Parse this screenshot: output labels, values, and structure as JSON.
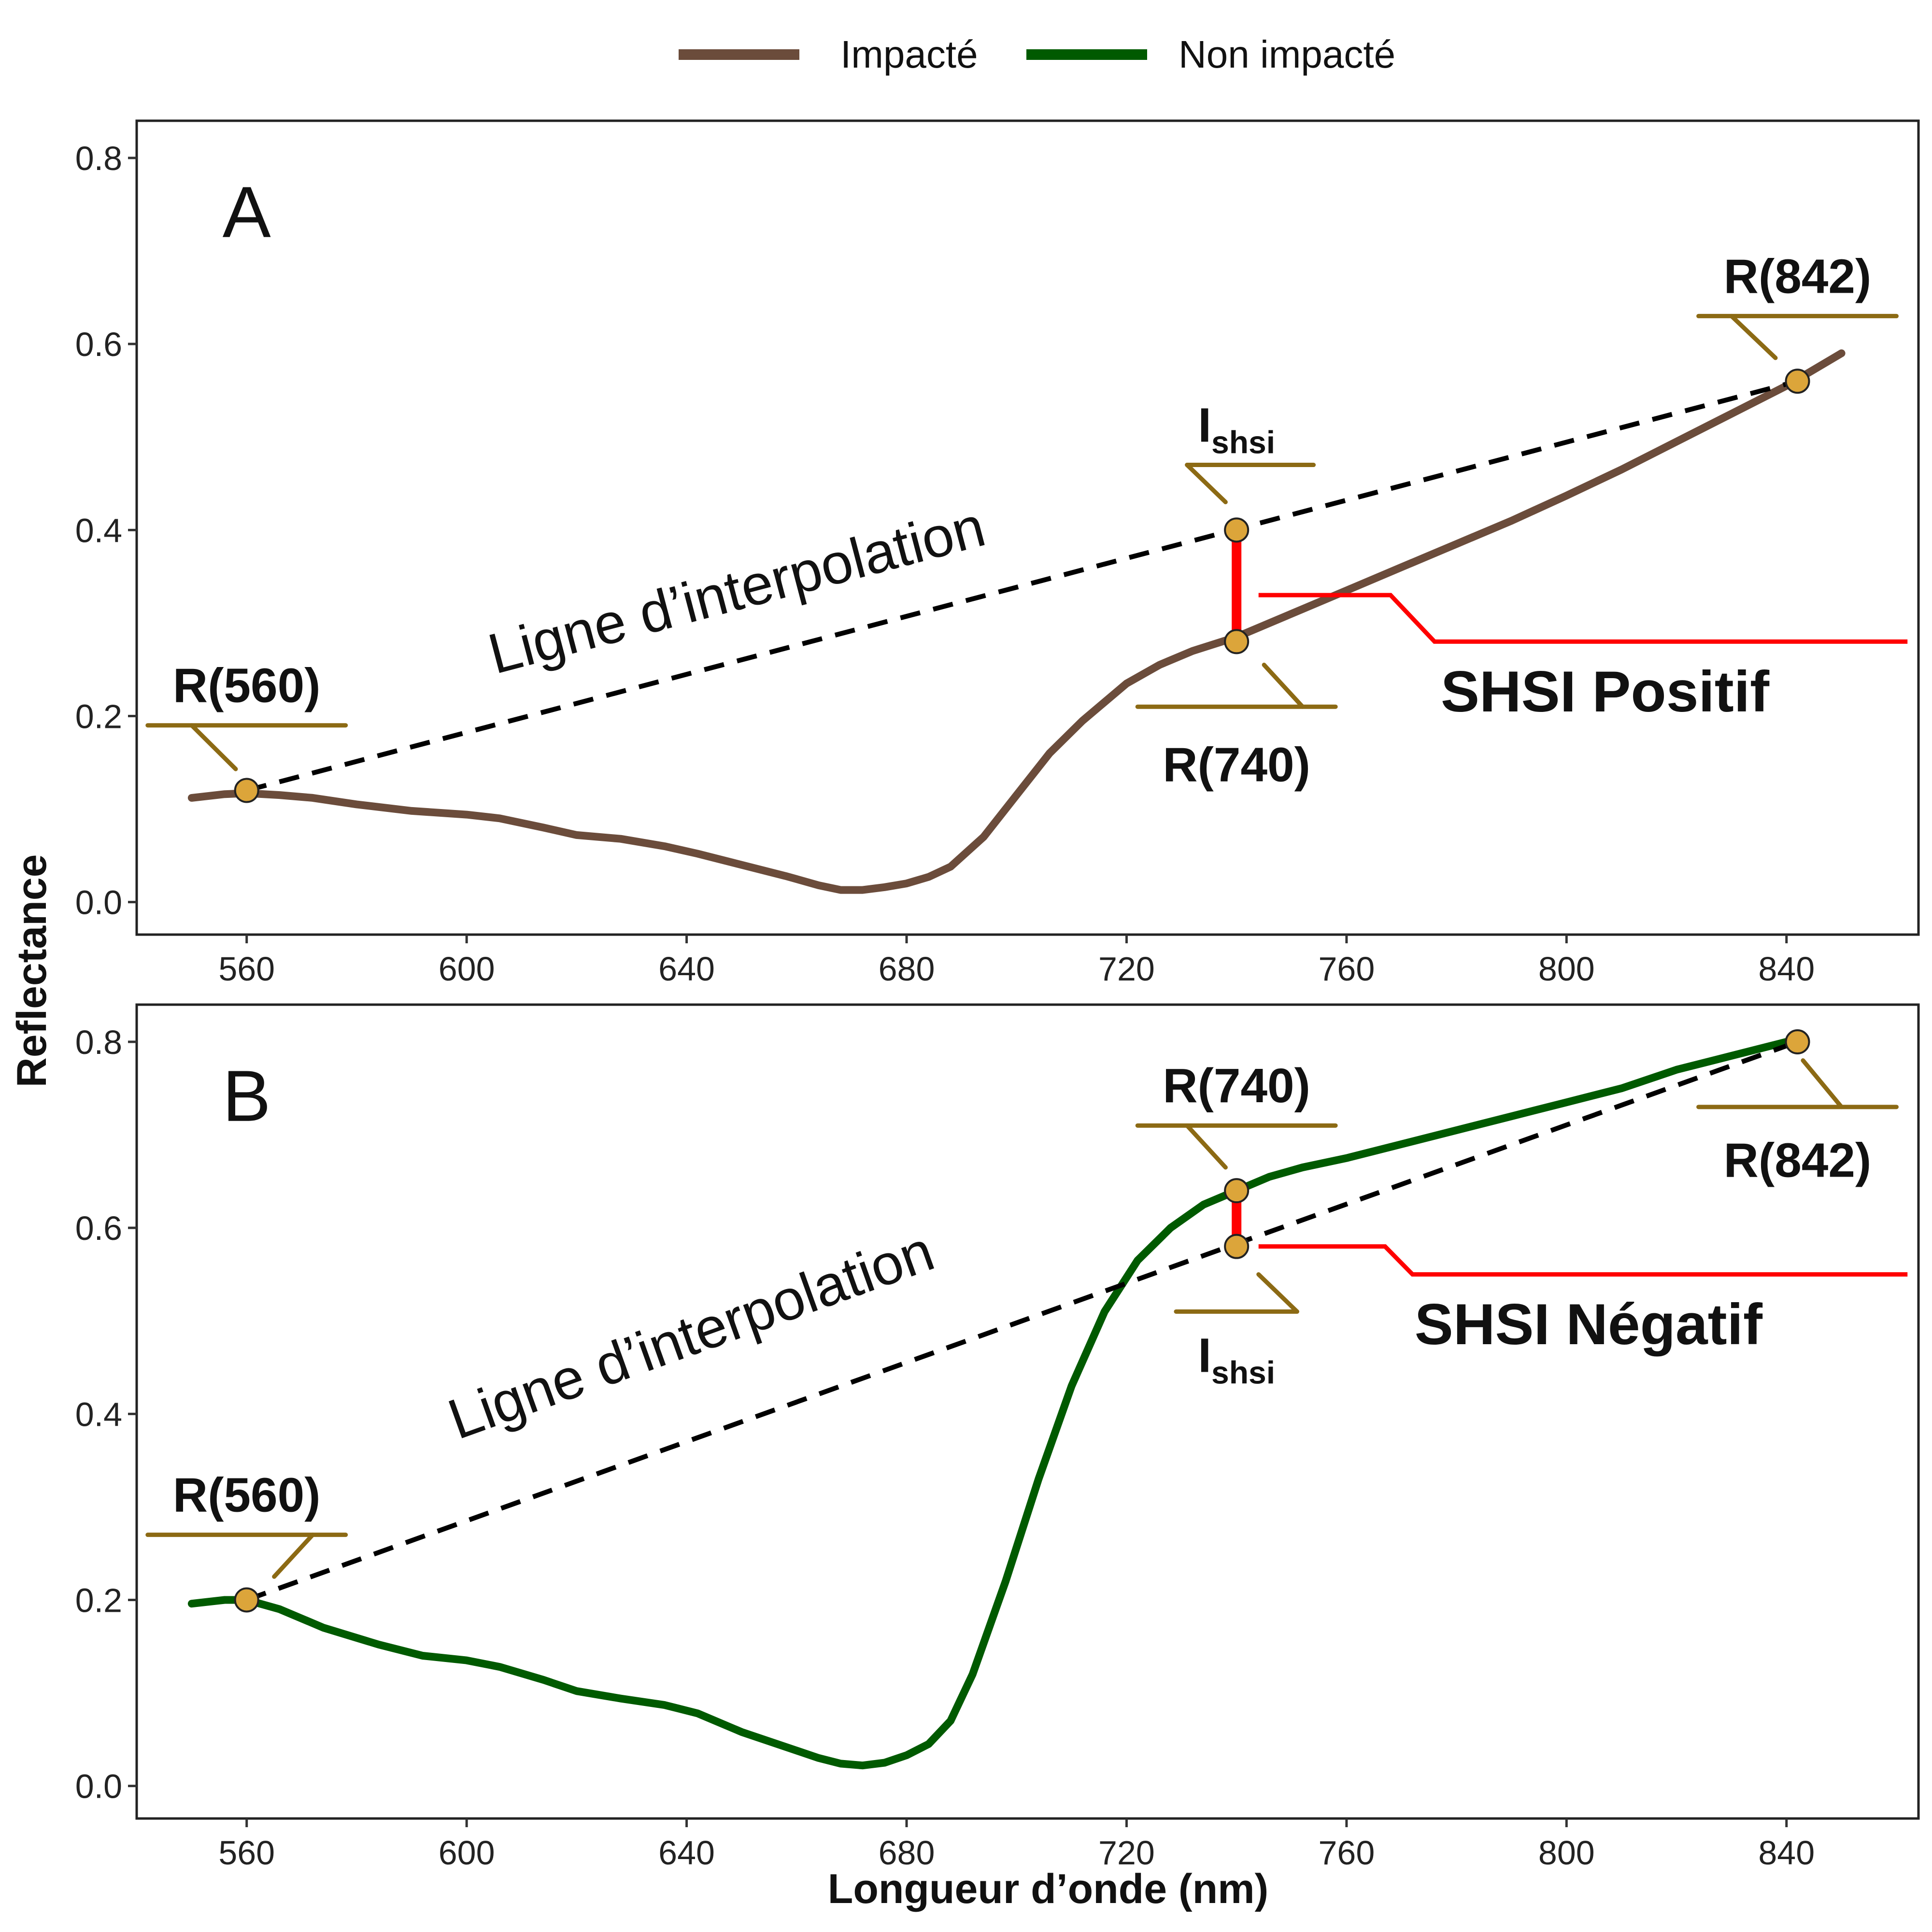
{
  "legend": {
    "items": [
      {
        "label": "Impacté",
        "color": "#6b4c3b"
      },
      {
        "label": "Non impacté",
        "color": "#005a00"
      }
    ]
  },
  "xlabel": "Longueur d’onde (nm)",
  "ylabel": "Reflectance",
  "colors": {
    "marker_fill": "#dca53a",
    "callout": "#8c6a14",
    "shsi": "#ff0000",
    "interp": "#000000"
  },
  "chart_data": [
    {
      "type": "line",
      "panel": "A",
      "xlim": [
        540,
        864
      ],
      "ylim": [
        -0.035,
        0.84
      ],
      "xticks": [
        560,
        600,
        640,
        680,
        720,
        760,
        800,
        840
      ],
      "yticks": [
        0.0,
        0.2,
        0.4,
        0.6,
        0.8
      ],
      "ytick_labels": [
        "0.0",
        "0.2",
        "0.4",
        "0.6",
        "0.8"
      ],
      "series": [
        {
          "name": "Impacté",
          "color": "#6b4c3b",
          "x": [
            550,
            556,
            560,
            566,
            572,
            580,
            590,
            600,
            606,
            614,
            620,
            628,
            636,
            642,
            650,
            658,
            664,
            668,
            672,
            676,
            680,
            684,
            688,
            694,
            700,
            706,
            712,
            720,
            726,
            732,
            740,
            746,
            752,
            760,
            770,
            780,
            790,
            800,
            810,
            820,
            830,
            840,
            850
          ],
          "y": [
            0.112,
            0.116,
            0.117,
            0.115,
            0.112,
            0.105,
            0.098,
            0.094,
            0.09,
            0.08,
            0.072,
            0.068,
            0.06,
            0.052,
            0.04,
            0.028,
            0.018,
            0.013,
            0.013,
            0.016,
            0.02,
            0.027,
            0.038,
            0.07,
            0.115,
            0.16,
            0.195,
            0.235,
            0.255,
            0.27,
            0.285,
            0.3,
            0.315,
            0.335,
            0.36,
            0.385,
            0.41,
            0.437,
            0.465,
            0.495,
            0.525,
            0.555,
            0.59
          ]
        }
      ],
      "interpolation": {
        "x": [
          560,
          842
        ],
        "y": [
          0.12,
          0.56
        ],
        "label": "Ligne d’interpolation"
      },
      "points": [
        {
          "x": 560,
          "y": 0.12
        },
        {
          "x": 740,
          "y": 0.4
        },
        {
          "x": 740,
          "y": 0.28
        },
        {
          "x": 842,
          "y": 0.56
        }
      ],
      "annotations": {
        "r560": "R(560)",
        "r740": "R(740)",
        "r842": "R(842)",
        "ishsi": "I",
        "ishsi_sub": "shsi",
        "shsi": "SHSI Positif"
      }
    },
    {
      "type": "line",
      "panel": "B",
      "xlim": [
        540,
        864
      ],
      "ylim": [
        -0.035,
        0.84
      ],
      "xticks": [
        560,
        600,
        640,
        680,
        720,
        760,
        800,
        840
      ],
      "yticks": [
        0.0,
        0.2,
        0.4,
        0.6,
        0.8
      ],
      "ytick_labels": [
        "0.0",
        "0.2",
        "0.4",
        "0.6",
        "0.8"
      ],
      "series": [
        {
          "name": "Non impacté",
          "color": "#005a00",
          "x": [
            550,
            556,
            560,
            566,
            574,
            584,
            592,
            600,
            606,
            614,
            620,
            628,
            636,
            642,
            650,
            658,
            664,
            668,
            672,
            676,
            680,
            684,
            688,
            692,
            698,
            704,
            710,
            716,
            722,
            728,
            734,
            740,
            746,
            752,
            760,
            770,
            780,
            790,
            800,
            810,
            820,
            830,
            840
          ],
          "y": [
            0.196,
            0.2,
            0.2,
            0.19,
            0.17,
            0.152,
            0.14,
            0.135,
            0.128,
            0.114,
            0.102,
            0.094,
            0.087,
            0.078,
            0.058,
            0.042,
            0.03,
            0.024,
            0.022,
            0.025,
            0.033,
            0.045,
            0.07,
            0.12,
            0.22,
            0.33,
            0.43,
            0.51,
            0.565,
            0.6,
            0.625,
            0.64,
            0.655,
            0.665,
            0.675,
            0.69,
            0.705,
            0.72,
            0.735,
            0.75,
            0.77,
            0.785,
            0.8
          ]
        }
      ],
      "interpolation": {
        "x": [
          560,
          842
        ],
        "y": [
          0.2,
          0.8
        ],
        "label": "Ligne d’interpolation"
      },
      "points": [
        {
          "x": 560,
          "y": 0.2
        },
        {
          "x": 740,
          "y": 0.64
        },
        {
          "x": 740,
          "y": 0.58
        },
        {
          "x": 842,
          "y": 0.8
        }
      ],
      "annotations": {
        "r560": "R(560)",
        "r740": "R(740)",
        "r842": "R(842)",
        "ishsi": "I",
        "ishsi_sub": "shsi",
        "shsi": "SHSI Négatif"
      }
    }
  ]
}
